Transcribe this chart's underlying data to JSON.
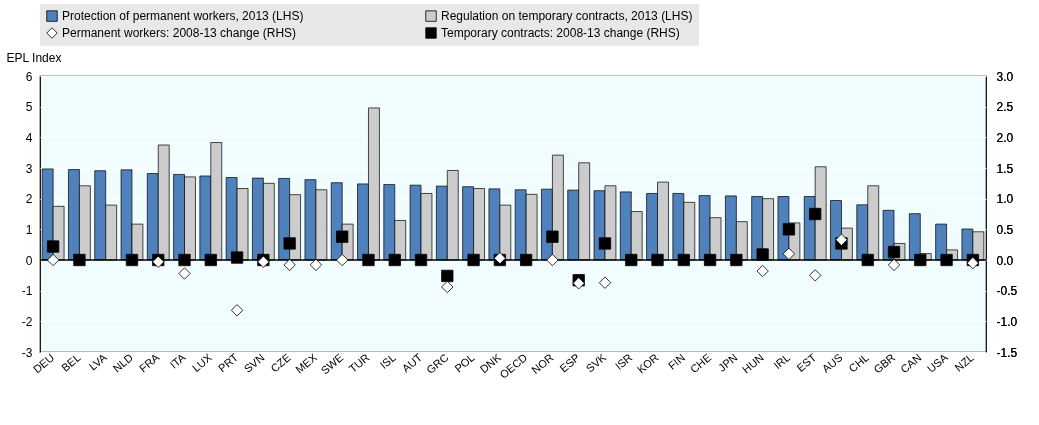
{
  "chart_data": {
    "type": "bar",
    "ylabel": "EPL Index",
    "categories": [
      "DEU",
      "BEL",
      "LVA",
      "NLD",
      "FRA",
      "ITA",
      "LUX",
      "PRT",
      "SVN",
      "CZE",
      "MEX",
      "SWE",
      "TUR",
      "ISL",
      "AUT",
      "GRC",
      "POL",
      "DNK",
      "OECD",
      "NOR",
      "ESP",
      "SVK",
      "ISR",
      "KOR",
      "FIN",
      "CHE",
      "JPN",
      "HUN",
      "IRL",
      "EST",
      "AUS",
      "CHL",
      "GBR",
      "CAN",
      "USA",
      "NZL"
    ],
    "series": [
      {
        "name": "Protection of permanent workers, 2013 (LHS)",
        "color": "#4f81bd",
        "values": [
          2.97,
          2.95,
          2.91,
          2.94,
          2.82,
          2.79,
          2.74,
          2.69,
          2.67,
          2.66,
          2.62,
          2.52,
          2.48,
          2.46,
          2.44,
          2.41,
          2.39,
          2.32,
          2.29,
          2.31,
          2.28,
          2.26,
          2.22,
          2.17,
          2.17,
          2.1,
          2.09,
          2.07,
          2.07,
          2.07,
          1.94,
          1.8,
          1.62,
          1.51,
          1.17,
          1.01
        ]
      },
      {
        "name": "Regulation on temporary contracts, 2013 (LHS)",
        "color": "#cccccc",
        "values": [
          1.75,
          2.42,
          1.79,
          1.17,
          3.75,
          2.71,
          3.83,
          2.33,
          2.5,
          2.13,
          2.29,
          1.17,
          4.96,
          1.29,
          2.17,
          2.92,
          2.33,
          1.79,
          2.14,
          3.42,
          3.17,
          2.42,
          1.58,
          2.54,
          1.88,
          1.38,
          1.25,
          2.0,
          1.21,
          3.04,
          1.04,
          2.42,
          0.54,
          0.21,
          0.33,
          0.92
        ]
      },
      {
        "name": "Permanent workers: 2008-13 change (RHS)",
        "type": "scatter",
        "axis": "y2",
        "marker": "diamond",
        "color": "#ffffff",
        "values": [
          0.0,
          null,
          null,
          null,
          -0.03,
          -0.22,
          null,
          -0.82,
          -0.03,
          -0.08,
          -0.08,
          0.0,
          null,
          null,
          null,
          -0.44,
          null,
          0.03,
          null,
          0.0,
          -0.38,
          -0.37,
          null,
          null,
          null,
          null,
          null,
          -0.18,
          0.1,
          -0.25,
          0.33,
          null,
          -0.08,
          null,
          null,
          -0.05
        ]
      },
      {
        "name": "Temporary contracts: 2008-13 change (RHS)",
        "type": "scatter",
        "axis": "y2",
        "marker": "square",
        "color": "#000000",
        "values": [
          0.22,
          0,
          null,
          0,
          0,
          0,
          0,
          0.04,
          0,
          0.27,
          null,
          0.38,
          0,
          0,
          0,
          -0.26,
          0,
          0,
          0,
          0.38,
          -0.33,
          0.27,
          0,
          0,
          0,
          0,
          0,
          0.09,
          0.5,
          0.75,
          0.27,
          0,
          0.13,
          0,
          0,
          0
        ]
      }
    ],
    "ylim": [
      -3,
      6
    ],
    "yticks": [
      -3,
      -2,
      -1,
      0,
      1,
      2,
      3,
      4,
      5,
      6
    ],
    "y2lim": [
      -1.5,
      3
    ],
    "y2ticks": [
      {
        "value": -1.5,
        "label": "-1.5"
      },
      {
        "value": -1,
        "label": "-1.0"
      },
      {
        "value": -0.5,
        "label": "-0.5"
      },
      {
        "value": 0,
        "label": "0.0"
      },
      {
        "value": 0.5,
        "label": "0.5"
      },
      {
        "value": 1,
        "label": "1.0"
      },
      {
        "value": 1.5,
        "label": "1.5"
      },
      {
        "value": 2,
        "label": "2.0"
      },
      {
        "value": 2.5,
        "label": "2.5"
      },
      {
        "value": 3,
        "label": "3.0"
      }
    ],
    "grid": "y",
    "legend": "top"
  }
}
